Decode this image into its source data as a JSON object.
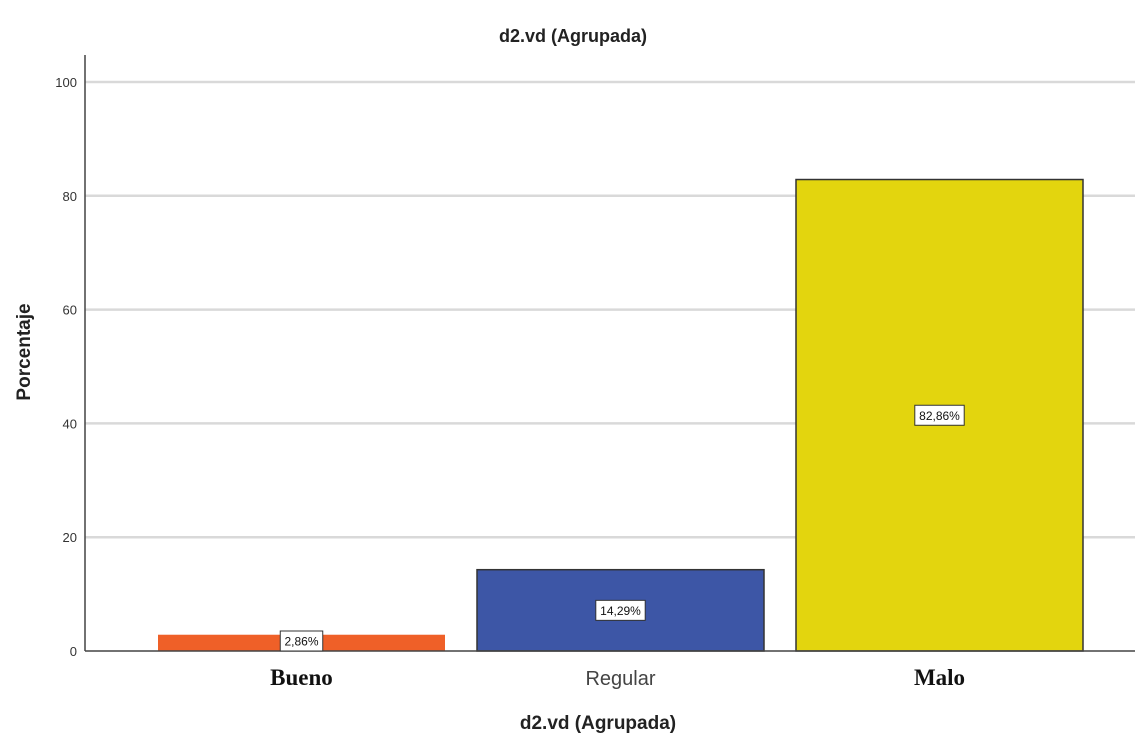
{
  "chart_data": {
    "type": "bar",
    "title": "d2.vd (Agrupada)",
    "xlabel": "d2.vd (Agrupada)",
    "ylabel": "Porcentaje",
    "categories": [
      "Bueno",
      "Regular",
      "Malo"
    ],
    "values": [
      2.86,
      14.29,
      82.86
    ],
    "data_labels": [
      "2,86%",
      "14,29%",
      "82,86%"
    ],
    "ylim": [
      0,
      100
    ],
    "yticks": [
      0,
      20,
      40,
      60,
      80,
      100
    ],
    "ytick_labels": [
      "0",
      "20",
      "40",
      "60",
      "80",
      "100"
    ],
    "grid": true,
    "legend": "none",
    "colors": [
      "#ef6028",
      "#3d56a6",
      "#e3d50e"
    ]
  }
}
